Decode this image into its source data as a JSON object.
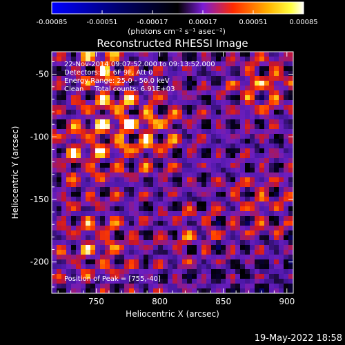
{
  "chart_data": {
    "type": "heatmap",
    "title": "Reconstructed RHESSI Image",
    "xlabel": "Heliocentric X (arcsec)",
    "ylabel": "Heliocentric Y (arcsec)",
    "xlim": [
      715,
      905
    ],
    "ylim": [
      -225,
      -32
    ],
    "x_ticks": [
      750,
      800,
      850,
      900
    ],
    "x_tick_labels": [
      "750",
      "800",
      "850",
      "900"
    ],
    "y_ticks": [
      -50,
      -100,
      -150,
      -200
    ],
    "y_tick_labels": [
      "-50",
      "-100",
      "-150",
      "-200"
    ],
    "colorbar": {
      "range": [
        -0.00085,
        0.00085
      ],
      "ticks": [
        -0.00085,
        -0.00051,
        -0.00017,
        0.00017,
        0.00051,
        0.00085
      ],
      "tick_labels": [
        "-0.00085",
        "-0.00051",
        "-0.00017",
        "0.00017",
        "0.00051",
        "0.00085"
      ],
      "units_label": "(photons cm⁻² s⁻¹ asec⁻²)",
      "colors": [
        "#0000ff",
        "#000000",
        "#7a1bd6",
        "#ff2a00",
        "#ffff00",
        "#ffffff"
      ]
    },
    "annotations": [
      "22-Nov-2014 09:07:52.000 to 09:13:52.000",
      "Detectors: 3F 6F 9F, Att 0",
      "Energy Range: 25.0 - 50.0 keV",
      "Clean     Total counts: 6.91E+03"
    ],
    "peak_text": "Position of Peak = [755,-40]",
    "peak": [
      755,
      -40
    ]
  },
  "timestamp": "19-May-2022 18:58"
}
